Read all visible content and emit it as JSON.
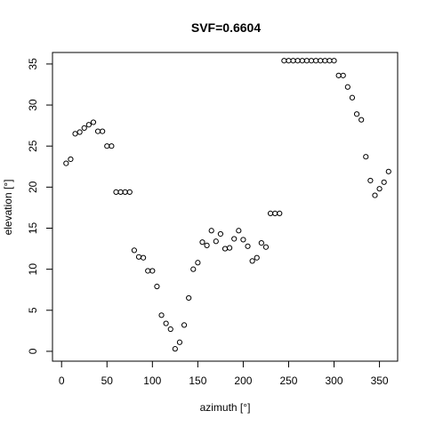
{
  "chart_data": {
    "type": "scatter",
    "title": "SVF=0.6604",
    "xlabel": "azimuth [°]",
    "ylabel": "elevation [°]",
    "xlim": [
      -10,
      370
    ],
    "ylim": [
      -1.2,
      36.4
    ],
    "x_ticks": [
      0,
      50,
      100,
      150,
      200,
      250,
      300,
      350
    ],
    "y_ticks": [
      0,
      5,
      10,
      15,
      20,
      25,
      30,
      35
    ],
    "x_tick_labels": [
      "0",
      "50",
      "100",
      "150",
      "200",
      "250",
      "300",
      "350"
    ],
    "y_tick_labels": [
      "0",
      "5",
      "10",
      "15",
      "20",
      "25",
      "30",
      "35"
    ],
    "grid": false,
    "legend": "none",
    "x": [
      5,
      10,
      15,
      20,
      25,
      30,
      35,
      40,
      45,
      50,
      55,
      60,
      65,
      70,
      75,
      80,
      85,
      90,
      95,
      100,
      105,
      110,
      115,
      120,
      125,
      130,
      135,
      140,
      145,
      150,
      155,
      160,
      165,
      170,
      175,
      180,
      185,
      190,
      195,
      200,
      205,
      210,
      215,
      220,
      225,
      230,
      235,
      240,
      245,
      250,
      255,
      260,
      265,
      270,
      275,
      280,
      285,
      290,
      295,
      300,
      305,
      310,
      315,
      320,
      325,
      330,
      335,
      340,
      345,
      350,
      355,
      360
    ],
    "y": [
      22.9,
      23.4,
      26.5,
      26.7,
      27.2,
      27.6,
      27.9,
      26.8,
      26.8,
      25.0,
      25.0,
      19.4,
      19.4,
      19.4,
      19.4,
      12.3,
      11.5,
      11.4,
      9.8,
      9.8,
      7.9,
      4.4,
      3.4,
      2.7,
      0.3,
      1.1,
      3.2,
      6.5,
      10.0,
      10.8,
      13.3,
      12.9,
      14.7,
      13.4,
      14.3,
      12.5,
      12.6,
      13.7,
      14.7,
      13.6,
      12.8,
      11.0,
      11.4,
      13.2,
      12.7,
      16.8,
      16.8,
      16.8,
      35.4,
      35.4,
      35.4,
      35.4,
      35.4,
      35.4,
      35.4,
      35.4,
      35.4,
      35.4,
      35.4,
      35.4,
      33.6,
      33.6,
      32.2,
      30.9,
      28.9,
      28.2,
      23.7,
      20.8,
      19.0,
      19.8,
      20.6,
      21.9
    ]
  }
}
